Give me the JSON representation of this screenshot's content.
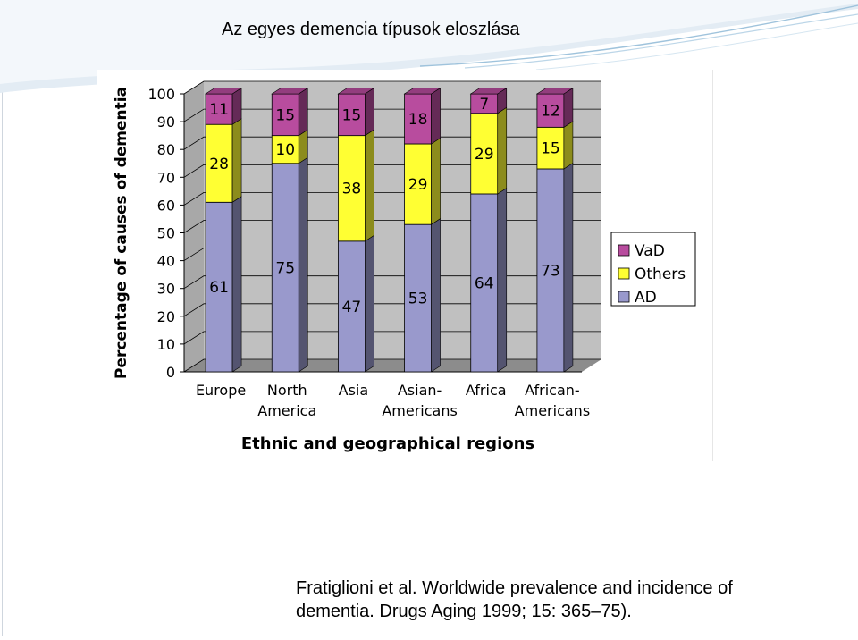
{
  "slide": {
    "title": "Az egyes demencia típusok eloszlása",
    "citation_line1": "Fratiglioni et al. Worldwide prevalence and incidence of",
    "citation_line2": "dementia. Drugs Aging 1999; 15: 365–75)."
  },
  "chart_data": {
    "type": "bar",
    "stacked": true,
    "three_d": true,
    "title": "",
    "xlabel": "Ethnic and geographical regions",
    "ylabel": "Percentage of causes of dementia",
    "ylim": [
      0,
      100
    ],
    "yticks": [
      0,
      10,
      20,
      30,
      40,
      50,
      60,
      70,
      80,
      90,
      100
    ],
    "grid": true,
    "legend_position": "right",
    "categories": [
      [
        "Europe"
      ],
      [
        "North",
        "America"
      ],
      [
        "Asia"
      ],
      [
        "Asian-",
        "Americans"
      ],
      [
        "Africa"
      ],
      [
        "African-",
        "Americans"
      ]
    ],
    "series": [
      {
        "name": "AD",
        "color": "#9999cc",
        "values": [
          61,
          75,
          47,
          53,
          64,
          73
        ]
      },
      {
        "name": "Others",
        "color": "#ffff33",
        "values": [
          28,
          10,
          38,
          29,
          29,
          15
        ]
      },
      {
        "name": "VaD",
        "color": "#b84c9e",
        "values": [
          11,
          15,
          15,
          18,
          7,
          12
        ]
      }
    ],
    "legend_order": [
      "VaD",
      "Others",
      "AD"
    ]
  }
}
